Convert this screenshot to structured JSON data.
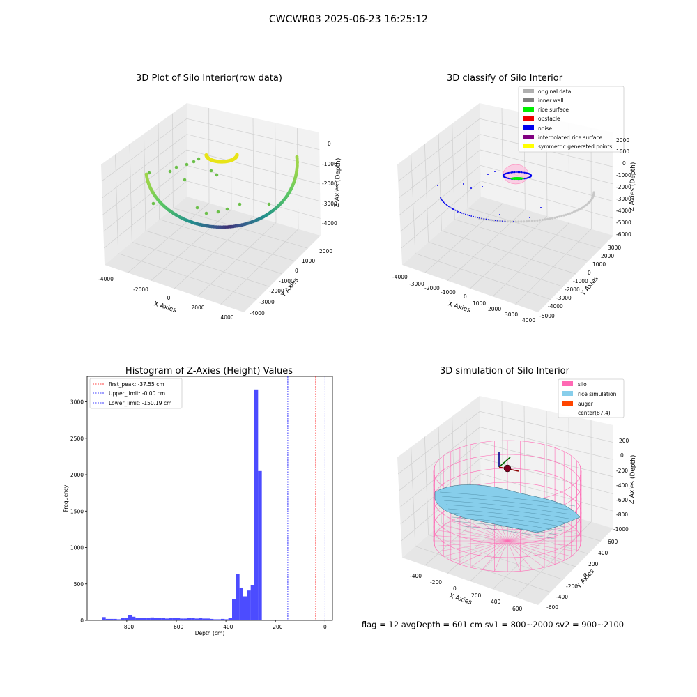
{
  "title": "CWCWR03 2025-06-23 16:25:12",
  "plot1": {
    "title": "3D Plot of Silo Interior(row data)",
    "xlabel": "X Axies",
    "ylabel": "Y Axies",
    "zlabel": "Z Axies (Depth)",
    "xticks": [
      "-4000",
      "-2000",
      "0",
      "2000",
      "4000"
    ],
    "yticks": [
      "2000",
      "1000",
      "0",
      "-1000",
      "-2000",
      "-3000",
      "-4000"
    ],
    "zticks": [
      "0",
      "-1000",
      "-2000",
      "-3000",
      "-4000"
    ]
  },
  "plot2": {
    "title": "3D classify of Silo Interior",
    "xlabel": "X Axies",
    "ylabel": "Y Axies",
    "zlabel": "Z Axies (Depth)",
    "xticks": [
      "-4000",
      "-3000",
      "-2000",
      "-1000",
      "0",
      "1000",
      "2000",
      "3000",
      "4000"
    ],
    "yticks": [
      "3000",
      "2000",
      "1000",
      "0",
      "-1000",
      "-2000",
      "-3000",
      "-4000",
      "-5000"
    ],
    "zticks": [
      "2000",
      "1000",
      "0",
      "-1000",
      "-2000",
      "-3000",
      "-4000",
      "-5000",
      "-6000"
    ],
    "legend": [
      {
        "label": "original data",
        "color": "#b0b0b0"
      },
      {
        "label": "inner wall",
        "color": "#808080"
      },
      {
        "label": "rice surface",
        "color": "#00ee00"
      },
      {
        "label": "obstacle",
        "color": "#ee0000"
      },
      {
        "label": "noise",
        "color": "#0000ee"
      },
      {
        "label": "interpolated rice surface",
        "color": "#800080"
      },
      {
        "label": "symmetric generated points",
        "color": "#ffff00"
      }
    ]
  },
  "chart_data": {
    "type": "bar",
    "title": "Histogram of Z-Axies (Height) Values",
    "xlabel": "Depth (cm)",
    "ylabel": "Frequency",
    "xlim": [
      -960,
      30
    ],
    "ylim": [
      0,
      3350
    ],
    "xticks": [
      -800,
      -600,
      -400,
      -200,
      0
    ],
    "yticks": [
      0,
      500,
      1000,
      1500,
      2000,
      2500,
      3000
    ],
    "bin_edges_start": -900,
    "bin_width": 15,
    "values": [
      45,
      20,
      20,
      20,
      15,
      30,
      35,
      70,
      50,
      30,
      30,
      30,
      35,
      40,
      35,
      30,
      30,
      25,
      30,
      30,
      30,
      25,
      25,
      30,
      30,
      25,
      30,
      25,
      25,
      20,
      15,
      15,
      20,
      15,
      30,
      290,
      640,
      450,
      330,
      410,
      480,
      3170,
      2050
    ],
    "bar_color": "#0000ff",
    "vlines": [
      {
        "label": "first_peak: -37.55 cm",
        "x": -37.55,
        "color": "#ff0000"
      },
      {
        "label": "Upper_limit: -0.00 cm",
        "x": -0.0,
        "color": "#0000ff"
      },
      {
        "label": "Lower_limit: -150.19 cm",
        "x": -150.19,
        "color": "#0000ff"
      }
    ],
    "legend_position": "top-left"
  },
  "plot4": {
    "title": "3D simulation of Silo Interior",
    "xlabel": "X Axies",
    "ylabel": "Y Axies",
    "zlabel": "Z Axies (Depth)",
    "xticks": [
      "-400",
      "-200",
      "0",
      "200",
      "400",
      "600"
    ],
    "yticks": [
      "600",
      "400",
      "200",
      "0",
      "-200",
      "-400",
      "-600"
    ],
    "zticks": [
      "200",
      "0",
      "-200",
      "-400",
      "-600",
      "-800",
      "-1000"
    ],
    "legend": [
      {
        "label": "silo",
        "color": "#ff69b4"
      },
      {
        "label": "rice simulation",
        "color": "#87ceeb"
      },
      {
        "label": "auger",
        "color": "#ff4500"
      },
      {
        "label": "center(87,4)",
        "color": ""
      }
    ]
  },
  "footer": "flag = 12   avgDepth = 601 cm  sv1 = 800~2000  sv2 = 900~2100"
}
